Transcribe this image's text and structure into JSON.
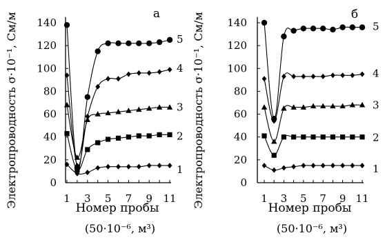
{
  "chart_data": [
    {
      "type": "line",
      "panel": "а",
      "x": [
        1,
        2,
        3,
        4,
        5,
        6,
        7,
        8,
        9,
        10,
        11
      ],
      "x_ticks": [
        "1",
        "3",
        "5",
        "7",
        "9",
        "11"
      ],
      "xlim": [
        1,
        11
      ],
      "y_ticks": [
        "0",
        "20",
        "40",
        "60",
        "80",
        "100",
        "120",
        "140"
      ],
      "ylim": [
        0,
        145
      ],
      "xlabel": "Номер пробы",
      "xlabel_unit": "(50·10⁻⁶, м³)",
      "ylabel": "Электропроводность σ·10⁻¹, См/м",
      "series": [
        {
          "name": "5",
          "marker": "circle",
          "values": [
            138,
            13,
            75,
            115,
            122,
            122,
            122,
            122,
            122,
            123,
            125
          ]
        },
        {
          "name": "4",
          "marker": "diamond",
          "values": [
            94,
            15,
            58,
            84,
            91,
            91,
            95,
            96,
            96,
            97,
            99
          ]
        },
        {
          "name": "3",
          "marker": "triangle",
          "values": [
            68,
            22,
            55,
            60,
            61,
            62,
            63,
            64,
            65,
            66,
            66
          ]
        },
        {
          "name": "2",
          "marker": "square",
          "values": [
            43,
            11,
            29,
            35,
            38,
            39,
            40,
            41,
            41,
            42,
            42
          ]
        },
        {
          "name": "1",
          "marker": "diamond",
          "values": [
            16,
            8,
            9,
            13,
            14,
            14,
            14,
            14,
            15,
            15,
            15
          ]
        }
      ]
    },
    {
      "type": "line",
      "panel": "б",
      "x": [
        1,
        2,
        3,
        4,
        5,
        6,
        7,
        8,
        9,
        10,
        11
      ],
      "x_ticks": [
        "1",
        "3",
        "5",
        "7",
        "9",
        "11"
      ],
      "xlim": [
        1,
        11
      ],
      "y_ticks": [
        "0",
        "20",
        "40",
        "60",
        "80",
        "100",
        "120",
        "140"
      ],
      "ylim": [
        0,
        145
      ],
      "xlabel": "Номер пробы",
      "xlabel_unit": "(50·10⁻⁶, м³)",
      "ylabel": "Электропроводность σ·10⁻¹, См/м",
      "series": [
        {
          "name": "5",
          "marker": "circle",
          "values": [
            140,
            56,
            128,
            133,
            135,
            135,
            135,
            134,
            136,
            136,
            136
          ]
        },
        {
          "name": "4",
          "marker": "diamond",
          "values": [
            91,
            54,
            93,
            93,
            93,
            93,
            93,
            94,
            94,
            94,
            95
          ]
        },
        {
          "name": "3",
          "marker": "triangle",
          "values": [
            66,
            36,
            65,
            66,
            66,
            67,
            67,
            67,
            67,
            68,
            68
          ]
        },
        {
          "name": "2",
          "marker": "square",
          "values": [
            41,
            24,
            40,
            40,
            40,
            40,
            40,
            40,
            40,
            40,
            40
          ]
        },
        {
          "name": "1",
          "marker": "diamond",
          "values": [
            15,
            11,
            13,
            14,
            15,
            15,
            15,
            15,
            15,
            15,
            15
          ]
        }
      ]
    }
  ]
}
